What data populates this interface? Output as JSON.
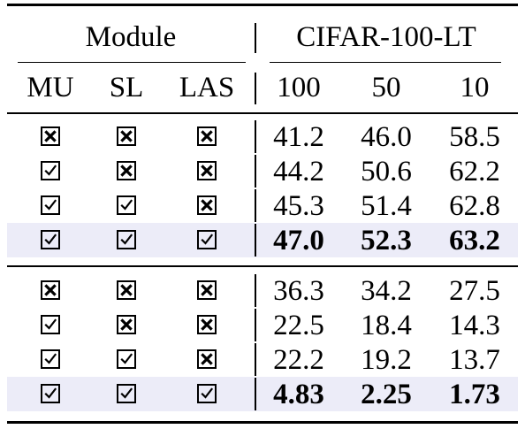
{
  "header": {
    "module": "Module",
    "dataset": "CIFAR-100-LT",
    "columns": [
      "MU",
      "SL",
      "LAS",
      "100",
      "50",
      "10"
    ]
  },
  "groups": [
    {
      "rows": [
        {
          "marks": [
            "cross",
            "cross",
            "cross"
          ],
          "values": [
            "41.2",
            "46.0",
            "58.5"
          ],
          "bold": false,
          "highlight": false
        },
        {
          "marks": [
            "check",
            "cross",
            "cross"
          ],
          "values": [
            "44.2",
            "50.6",
            "62.2"
          ],
          "bold": false,
          "highlight": false
        },
        {
          "marks": [
            "check",
            "check",
            "cross"
          ],
          "values": [
            "45.3",
            "51.4",
            "62.8"
          ],
          "bold": false,
          "highlight": false
        },
        {
          "marks": [
            "check",
            "check",
            "check"
          ],
          "values": [
            "47.0",
            "52.3",
            "63.2"
          ],
          "bold": true,
          "highlight": true
        }
      ]
    },
    {
      "rows": [
        {
          "marks": [
            "cross",
            "cross",
            "cross"
          ],
          "values": [
            "36.3",
            "34.2",
            "27.5"
          ],
          "bold": false,
          "highlight": false
        },
        {
          "marks": [
            "check",
            "cross",
            "cross"
          ],
          "values": [
            "22.5",
            "18.4",
            "14.3"
          ],
          "bold": false,
          "highlight": false
        },
        {
          "marks": [
            "check",
            "check",
            "cross"
          ],
          "values": [
            "22.2",
            "19.2",
            "13.7"
          ],
          "bold": false,
          "highlight": false
        },
        {
          "marks": [
            "check",
            "check",
            "check"
          ],
          "values": [
            "4.83",
            "2.25",
            "1.73"
          ],
          "bold": true,
          "highlight": true
        }
      ]
    }
  ],
  "colors": {
    "highlight": "#ececf8",
    "rule": "#000000"
  }
}
